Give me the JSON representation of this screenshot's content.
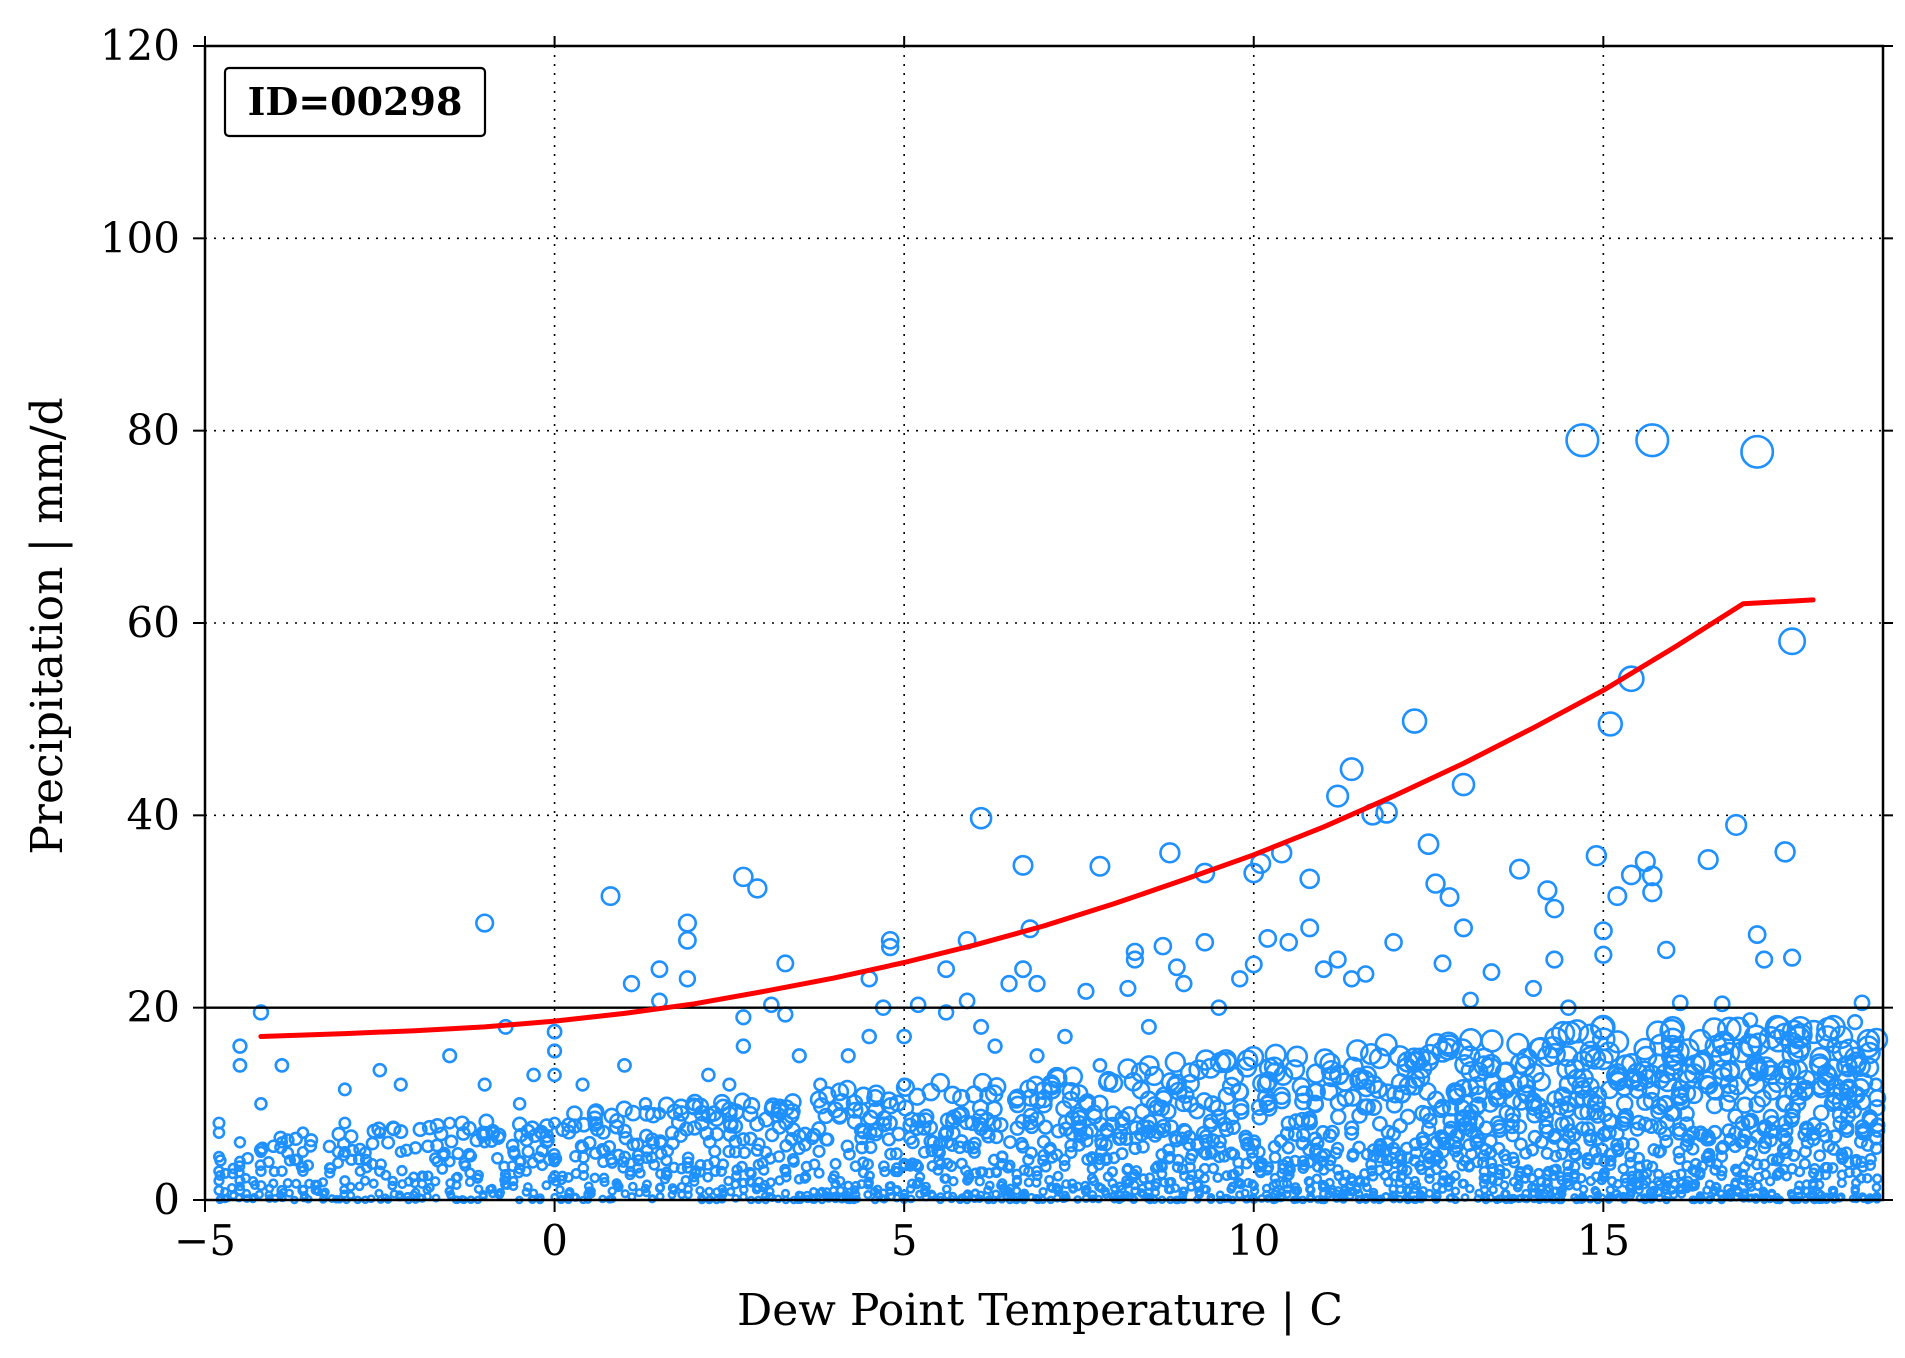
{
  "chart_data": {
    "type": "scatter",
    "id_box_text": "ID=00298",
    "xlabel": "Dew Point Temperature | C",
    "ylabel": "Precipitation | mm/d",
    "xlim": [
      -5,
      19
    ],
    "ylim": [
      0,
      120
    ],
    "x_ticks": [
      -5,
      0,
      5,
      10,
      15
    ],
    "y_ticks": [
      0,
      20,
      40,
      60,
      80,
      100,
      120
    ],
    "x_tick_labels": [
      "−5",
      "0",
      "5",
      "10",
      "15"
    ],
    "y_tick_labels": [
      "0",
      "20",
      "40",
      "60",
      "80",
      "100",
      "120"
    ],
    "grid": true,
    "colors": {
      "points": "#1e90ff",
      "fit": "#ff0000",
      "threshold": "#000000"
    },
    "threshold_line": {
      "y": 20
    },
    "fit_curve": {
      "x": [
        -4.2,
        -3,
        -2,
        -1,
        0,
        1,
        2,
        3,
        4,
        5,
        6,
        7,
        8,
        9,
        10,
        11,
        12,
        13,
        14,
        15,
        16,
        17,
        18
      ],
      "y": [
        17,
        17.3,
        17.6,
        18,
        18.6,
        19.4,
        20.4,
        21.7,
        23.1,
        24.7,
        26.5,
        28.5,
        30.8,
        33.3,
        35.9,
        38.8,
        42,
        45.4,
        49.1,
        53,
        57.4,
        62,
        62.4
      ]
    },
    "series": [
      {
        "values": [
          [
            -4.8,
            8
          ],
          [
            -4.8,
            7
          ],
          [
            -4.8,
            4.5
          ],
          [
            -4.8,
            3
          ],
          [
            -4.8,
            2
          ],
          [
            -4.8,
            1
          ],
          [
            -4.5,
            16
          ],
          [
            -4.5,
            14
          ],
          [
            -4.5,
            6
          ],
          [
            -4.5,
            4
          ],
          [
            -4.5,
            2
          ],
          [
            -4.5,
            1
          ],
          [
            -4.2,
            19.5
          ],
          [
            -4.2,
            10
          ],
          [
            -4.2,
            5
          ],
          [
            -4.2,
            3
          ],
          [
            -4.2,
            1.5
          ],
          [
            -3.9,
            14
          ],
          [
            -3.9,
            6
          ],
          [
            -3.9,
            3
          ],
          [
            -3.9,
            1
          ],
          [
            -3.6,
            7
          ],
          [
            -3.6,
            5
          ],
          [
            -3.6,
            3
          ],
          [
            -3.6,
            1
          ],
          [
            -3.0,
            11.5
          ],
          [
            -3.0,
            8
          ],
          [
            -3.0,
            5
          ],
          [
            -3.0,
            2
          ],
          [
            -2.5,
            13.5
          ],
          [
            -2.5,
            7
          ],
          [
            -2.5,
            3
          ],
          [
            -2.2,
            12
          ],
          [
            -2.2,
            5
          ],
          [
            -1.5,
            15
          ],
          [
            -1.5,
            8
          ],
          [
            -1.5,
            4
          ],
          [
            -1.0,
            28.8
          ],
          [
            -1.0,
            12
          ],
          [
            -1.0,
            6
          ],
          [
            -0.7,
            18
          ],
          [
            -0.5,
            10
          ],
          [
            -0.5,
            4
          ],
          [
            -0.3,
            13
          ],
          [
            -0.2,
            7
          ],
          [
            0.0,
            17.5
          ],
          [
            0.0,
            15.5
          ],
          [
            0.0,
            13
          ],
          [
            0.0,
            8
          ],
          [
            0.0,
            4
          ],
          [
            0.4,
            12
          ],
          [
            0.6,
            8
          ],
          [
            0.8,
            31.6
          ],
          [
            1.0,
            14
          ],
          [
            1.1,
            22.5
          ],
          [
            1.3,
            10
          ],
          [
            1.5,
            24
          ],
          [
            1.5,
            20.7
          ],
          [
            1.5,
            9
          ],
          [
            1.9,
            28.8
          ],
          [
            1.9,
            27
          ],
          [
            1.9,
            23
          ],
          [
            2.2,
            13
          ],
          [
            2.5,
            12
          ],
          [
            2.7,
            33.6
          ],
          [
            2.7,
            19
          ],
          [
            2.7,
            16
          ],
          [
            2.9,
            32.4
          ],
          [
            3.1,
            20.3
          ],
          [
            3.3,
            24.6
          ],
          [
            3.3,
            19.3
          ],
          [
            3.5,
            15
          ],
          [
            3.8,
            12
          ],
          [
            4.2,
            15
          ],
          [
            4.5,
            23
          ],
          [
            4.5,
            17
          ],
          [
            4.7,
            20
          ],
          [
            4.8,
            27
          ],
          [
            4.8,
            26.3
          ],
          [
            5.0,
            17
          ],
          [
            5.0,
            12
          ],
          [
            5.2,
            20.3
          ],
          [
            5.6,
            19.5
          ],
          [
            5.6,
            24
          ],
          [
            5.9,
            27
          ],
          [
            5.9,
            20.7
          ],
          [
            6.1,
            39.7
          ],
          [
            6.1,
            18
          ],
          [
            6.3,
            16
          ],
          [
            6.7,
            34.8
          ],
          [
            6.7,
            24
          ],
          [
            6.5,
            22.5
          ],
          [
            6.8,
            28.2
          ],
          [
            6.9,
            22.5
          ],
          [
            6.9,
            15
          ],
          [
            7.3,
            17
          ],
          [
            7.6,
            21.7
          ],
          [
            7.8,
            34.7
          ],
          [
            7.8,
            14
          ],
          [
            8.2,
            22
          ],
          [
            8.3,
            25.8
          ],
          [
            8.3,
            25
          ],
          [
            8.5,
            18
          ],
          [
            8.7,
            26.4
          ],
          [
            8.8,
            36.1
          ],
          [
            8.9,
            24.2
          ],
          [
            9.0,
            22.5
          ],
          [
            9.3,
            26.8
          ],
          [
            9.3,
            34
          ],
          [
            9.5,
            20
          ],
          [
            9.8,
            23
          ],
          [
            10.0,
            34
          ],
          [
            10.0,
            24.5
          ],
          [
            10.1,
            35
          ],
          [
            10.2,
            27.2
          ],
          [
            10.4,
            36.1
          ],
          [
            10.5,
            26.8
          ],
          [
            10.8,
            33.4
          ],
          [
            10.8,
            28.3
          ],
          [
            11.0,
            24
          ],
          [
            11.2,
            42
          ],
          [
            11.2,
            25
          ],
          [
            11.4,
            44.8
          ],
          [
            11.4,
            23
          ],
          [
            11.6,
            23.5
          ],
          [
            11.7,
            40.1
          ],
          [
            11.9,
            40.3
          ],
          [
            12.0,
            26.8
          ],
          [
            12.3,
            49.8
          ],
          [
            12.5,
            37
          ],
          [
            12.6,
            32.9
          ],
          [
            12.7,
            24.6
          ],
          [
            12.8,
            31.5
          ],
          [
            13.0,
            43.2
          ],
          [
            13.0,
            28.3
          ],
          [
            13.1,
            20.8
          ],
          [
            13.4,
            23.7
          ],
          [
            13.8,
            34.4
          ],
          [
            14.0,
            22
          ],
          [
            14.2,
            32.2
          ],
          [
            14.3,
            30.3
          ],
          [
            14.3,
            25
          ],
          [
            14.5,
            20
          ],
          [
            14.7,
            79
          ],
          [
            14.9,
            35.8
          ],
          [
            15.0,
            28
          ],
          [
            15.0,
            25.5
          ],
          [
            15.1,
            49.5
          ],
          [
            15.2,
            31.6
          ],
          [
            15.4,
            54.2
          ],
          [
            15.4,
            33.8
          ],
          [
            15.6,
            35.2
          ],
          [
            15.7,
            79
          ],
          [
            15.7,
            33.7
          ],
          [
            15.7,
            32
          ],
          [
            15.9,
            26
          ],
          [
            16.1,
            20.5
          ],
          [
            16.5,
            35.4
          ],
          [
            16.7,
            20.4
          ],
          [
            16.9,
            39
          ],
          [
            17.1,
            18.7
          ],
          [
            17.2,
            27.6
          ],
          [
            17.2,
            77.8
          ],
          [
            17.3,
            25
          ],
          [
            17.6,
            36.2
          ],
          [
            17.7,
            58.1
          ],
          [
            17.7,
            25.2
          ],
          [
            18.3,
            16
          ],
          [
            18.6,
            18.5
          ],
          [
            18.7,
            20.5
          ],
          [
            18.9,
            12
          ],
          [
            18.5,
            13.5
          ]
        ]
      }
    ]
  }
}
